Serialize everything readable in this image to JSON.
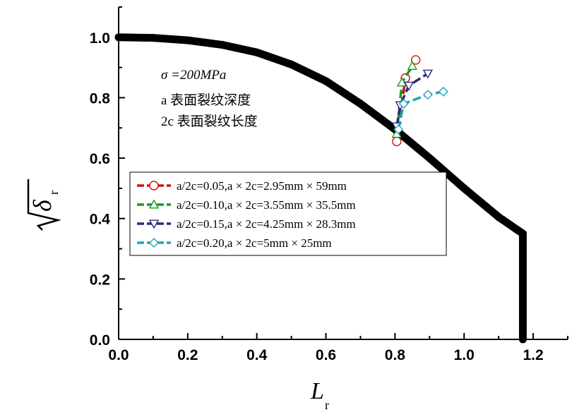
{
  "chart_data": {
    "type": "scatter",
    "xlim": [
      0.0,
      1.3
    ],
    "ylim": [
      0.0,
      1.1
    ],
    "x_ticks": [
      "0.0",
      "0.2",
      "0.4",
      "0.6",
      "0.8",
      "1.0",
      "1.2"
    ],
    "y_ticks": [
      "0.0",
      "0.2",
      "0.4",
      "0.6",
      "0.8",
      "1.0"
    ],
    "xlabel": {
      "main": "L",
      "sub": "r"
    },
    "ylabel": {
      "main": "δ",
      "sub": "r"
    },
    "annotations": [
      "σ =200MPa",
      "a 表面裂纹深度",
      "2c 表面裂纹长度"
    ],
    "grid": false,
    "legend_position": "center-right",
    "curve": {
      "description": "failure assessment curve",
      "color": "#000000",
      "points": [
        [
          0.0,
          1.0
        ],
        [
          0.1,
          0.998
        ],
        [
          0.2,
          0.99
        ],
        [
          0.3,
          0.975
        ],
        [
          0.4,
          0.95
        ],
        [
          0.5,
          0.91
        ],
        [
          0.6,
          0.855
        ],
        [
          0.7,
          0.78
        ],
        [
          0.8,
          0.695
        ],
        [
          0.9,
          0.6
        ],
        [
          1.0,
          0.5
        ],
        [
          1.1,
          0.405
        ],
        [
          1.17,
          0.35
        ],
        [
          1.17,
          0.0
        ]
      ]
    },
    "series": [
      {
        "name": "a/2c=0.05,a × 2c=2.95mm × 59mm",
        "color": "#d01010",
        "marker": "circle",
        "x": [
          0.805,
          0.83,
          0.86
        ],
        "y": [
          0.655,
          0.865,
          0.925
        ]
      },
      {
        "name": "a/2c=0.10,a × 2c=3.55mm × 35.5mm",
        "color": "#1a9a1a",
        "marker": "triangle-up",
        "x": [
          0.805,
          0.82,
          0.85
        ],
        "y": [
          0.68,
          0.85,
          0.905
        ]
      },
      {
        "name": "a/2c=0.15,a × 2c=4.25mm × 28.3mm",
        "color": "#2e2a7a",
        "marker": "triangle-down",
        "x": [
          0.805,
          0.815,
          0.84,
          0.895
        ],
        "y": [
          0.705,
          0.775,
          0.84,
          0.88
        ]
      },
      {
        "name": "a/2c=0.20,a × 2c=5mm × 25mm",
        "color": "#1fa6b5",
        "marker": "diamond",
        "x": [
          0.81,
          0.825,
          0.895,
          0.94
        ],
        "y": [
          0.695,
          0.78,
          0.81,
          0.82
        ]
      }
    ]
  }
}
